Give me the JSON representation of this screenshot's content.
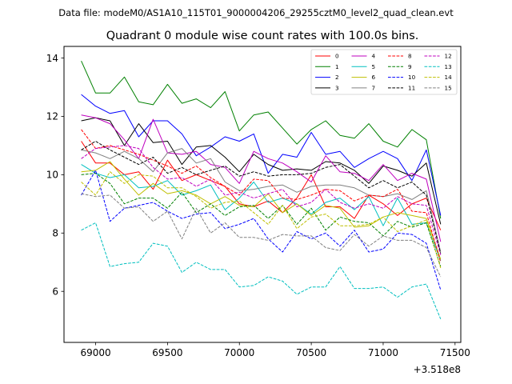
{
  "chart_data": {
    "type": "line",
    "suptitle": "Data file: modeM0/AS1A10_115T01_9000004206_29255cztM0_level2_quad_clean.evt",
    "title": "Quadrant 0 module wise count rates with 100.0s bins.",
    "xlabel": "",
    "ylabel": "",
    "x_offset_label": "+3.518e8",
    "xlim": [
      68780,
      71540
    ],
    "ylim": [
      4.25,
      14.4
    ],
    "xticks": [
      69000,
      69500,
      70000,
      70500,
      71000,
      71500
    ],
    "xtick_labels": [
      "69000",
      "69500",
      "70000",
      "70500",
      "71000",
      "71500"
    ],
    "yticks": [
      6,
      8,
      10,
      12,
      14
    ],
    "ytick_labels": [
      "6",
      "8",
      "10",
      "12",
      "14"
    ],
    "legend_position": "top-right",
    "x": [
      68900,
      69000,
      69100,
      69200,
      69300,
      69400,
      69500,
      69600,
      69700,
      69800,
      69900,
      70000,
      70100,
      70200,
      70300,
      70400,
      70500,
      70600,
      70700,
      70800,
      70900,
      71000,
      71100,
      71200,
      71300,
      71400
    ],
    "series": [
      {
        "name": "0",
        "color": "#ff0000",
        "dash": "solid",
        "values": [
          11.15,
          10.4,
          10.4,
          10.0,
          10.1,
          9.5,
          10.5,
          9.8,
          10.0,
          9.8,
          9.6,
          9.0,
          8.9,
          9.1,
          8.7,
          9.2,
          10.0,
          8.9,
          8.9,
          8.5,
          9.3,
          9.0,
          8.6,
          9.0,
          9.2,
          8.1
        ]
      },
      {
        "name": "1",
        "color": "#008000",
        "dash": "solid",
        "values": [
          13.9,
          12.8,
          12.8,
          13.35,
          12.5,
          12.4,
          13.1,
          12.45,
          12.6,
          12.3,
          12.85,
          11.5,
          12.05,
          12.15,
          11.6,
          11.05,
          11.55,
          11.85,
          11.35,
          11.25,
          11.75,
          11.15,
          10.95,
          11.55,
          11.2,
          8.5
        ]
      },
      {
        "name": "2",
        "color": "#0000ff",
        "dash": "solid",
        "values": [
          12.75,
          12.35,
          12.1,
          12.2,
          11.3,
          11.85,
          11.85,
          11.4,
          10.65,
          10.95,
          11.3,
          11.15,
          11.4,
          10.05,
          10.7,
          10.6,
          11.45,
          10.7,
          10.8,
          10.25,
          10.55,
          10.8,
          10.55,
          9.8,
          10.85,
          8.6
        ]
      },
      {
        "name": "3",
        "color": "#000000",
        "dash": "solid",
        "values": [
          11.85,
          11.95,
          11.85,
          11.0,
          11.75,
          11.1,
          11.15,
          10.35,
          10.95,
          11.0,
          10.6,
          10.1,
          10.7,
          10.35,
          10.15,
          10.2,
          10.15,
          10.45,
          10.4,
          10.15,
          9.7,
          10.3,
          10.15,
          9.95,
          10.4,
          8.3
        ]
      },
      {
        "name": "4",
        "color": "#bf00bf",
        "dash": "solid",
        "values": [
          12.05,
          11.95,
          11.75,
          11.2,
          10.55,
          11.9,
          10.75,
          10.7,
          10.8,
          10.35,
          10.25,
          9.7,
          10.8,
          10.55,
          10.4,
          10.1,
          9.75,
          10.65,
          10.1,
          10.05,
          9.8,
          10.35,
          9.8,
          10.05,
          9.85,
          7.7
        ]
      },
      {
        "name": "5",
        "color": "#00bfbf",
        "dash": "solid",
        "values": [
          10.35,
          10.05,
          9.9,
          10.0,
          9.55,
          9.6,
          9.8,
          9.3,
          9.45,
          9.65,
          8.8,
          9.2,
          9.75,
          9.05,
          9.2,
          9.0,
          8.65,
          9.05,
          9.2,
          8.8,
          9.25,
          8.25,
          9.2,
          8.3,
          8.35,
          7.05
        ]
      },
      {
        "name": "6",
        "color": "#bfbf00",
        "dash": "solid",
        "values": [
          10.1,
          10.15,
          10.45,
          9.85,
          9.3,
          9.7,
          9.35,
          9.45,
          9.3,
          9.0,
          9.25,
          8.95,
          8.9,
          9.35,
          8.7,
          9.0,
          8.6,
          8.95,
          8.85,
          8.2,
          8.25,
          8.55,
          8.7,
          8.6,
          8.5,
          7.1
        ]
      },
      {
        "name": "7",
        "color": "#808080",
        "dash": "solid",
        "values": [
          10.85,
          10.75,
          10.55,
          10.8,
          10.55,
          10.1,
          10.75,
          10.9,
          10.4,
          10.55,
          9.75,
          9.45,
          9.5,
          9.6,
          9.65,
          9.4,
          9.6,
          9.65,
          9.65,
          9.55,
          9.3,
          9.25,
          9.35,
          9.15,
          9.45,
          7.35
        ]
      },
      {
        "name": "8",
        "color": "#ff0000",
        "dash": "dashed",
        "values": [
          11.55,
          10.9,
          11.0,
          10.85,
          10.7,
          10.5,
          10.3,
          10.05,
          10.3,
          9.9,
          9.6,
          9.3,
          9.85,
          9.8,
          9.2,
          9.15,
          9.3,
          9.5,
          9.45,
          9.1,
          9.3,
          9.25,
          9.5,
          8.75,
          8.7,
          7.0
        ]
      },
      {
        "name": "9",
        "color": "#008000",
        "dash": "dashed",
        "values": [
          10.0,
          10.05,
          9.7,
          9.0,
          9.2,
          9.2,
          8.85,
          9.4,
          8.7,
          9.0,
          8.6,
          8.9,
          8.95,
          8.5,
          8.95,
          8.3,
          8.85,
          8.1,
          8.55,
          8.4,
          8.35,
          7.9,
          8.4,
          8.2,
          8.35,
          6.85
        ]
      },
      {
        "name": "10",
        "color": "#0000ff",
        "dash": "dashed",
        "values": [
          9.3,
          10.15,
          8.4,
          8.85,
          8.95,
          9.05,
          8.75,
          8.5,
          8.65,
          8.7,
          8.15,
          8.3,
          8.5,
          7.8,
          7.35,
          8.05,
          7.8,
          8.0,
          7.55,
          8.1,
          7.35,
          7.45,
          8.0,
          7.95,
          7.65,
          6.05
        ]
      },
      {
        "name": "11",
        "color": "#000000",
        "dash": "dashed",
        "values": [
          10.85,
          11.15,
          10.85,
          10.6,
          10.35,
          10.6,
          10.05,
          10.25,
          10.0,
          10.15,
          10.3,
          9.95,
          10.1,
          9.95,
          10.0,
          10.0,
          10.05,
          10.25,
          10.35,
          9.95,
          9.55,
          9.8,
          9.55,
          9.75,
          9.3,
          7.3
        ]
      },
      {
        "name": "12",
        "color": "#bf00bf",
        "dash": "dashed",
        "values": [
          10.55,
          10.9,
          10.95,
          11.0,
          10.9,
          10.25,
          9.85,
          9.9,
          9.6,
          9.85,
          9.3,
          9.4,
          9.2,
          9.35,
          9.5,
          8.9,
          9.05,
          9.5,
          9.05,
          8.85,
          9.0,
          8.85,
          9.25,
          9.0,
          8.95,
          7.25
        ]
      },
      {
        "name": "13",
        "color": "#00bfbf",
        "dash": "dashed",
        "values": [
          8.1,
          8.35,
          6.85,
          6.95,
          7.0,
          7.65,
          7.55,
          6.65,
          7.0,
          6.75,
          6.75,
          6.15,
          6.2,
          6.5,
          6.35,
          5.9,
          6.15,
          6.15,
          6.85,
          6.1,
          6.1,
          6.15,
          5.8,
          6.15,
          6.25,
          5.05
        ]
      },
      {
        "name": "14",
        "color": "#bfbf00",
        "dash": "dashed",
        "values": [
          9.75,
          9.3,
          10.1,
          9.7,
          10.0,
          9.95,
          9.55,
          9.55,
          9.25,
          8.85,
          9.05,
          9.1,
          8.7,
          8.3,
          8.95,
          8.15,
          8.55,
          8.65,
          8.25,
          8.25,
          8.3,
          8.55,
          8.05,
          8.25,
          8.45,
          6.8
        ]
      },
      {
        "name": "15",
        "color": "#808080",
        "dash": "dashed",
        "values": [
          9.35,
          9.25,
          9.3,
          8.85,
          8.9,
          8.4,
          8.75,
          7.8,
          8.85,
          8.0,
          8.35,
          7.85,
          7.85,
          7.75,
          7.95,
          7.9,
          7.9,
          7.5,
          7.4,
          7.95,
          7.55,
          7.9,
          7.75,
          7.75,
          7.5,
          6.5
        ]
      }
    ]
  }
}
